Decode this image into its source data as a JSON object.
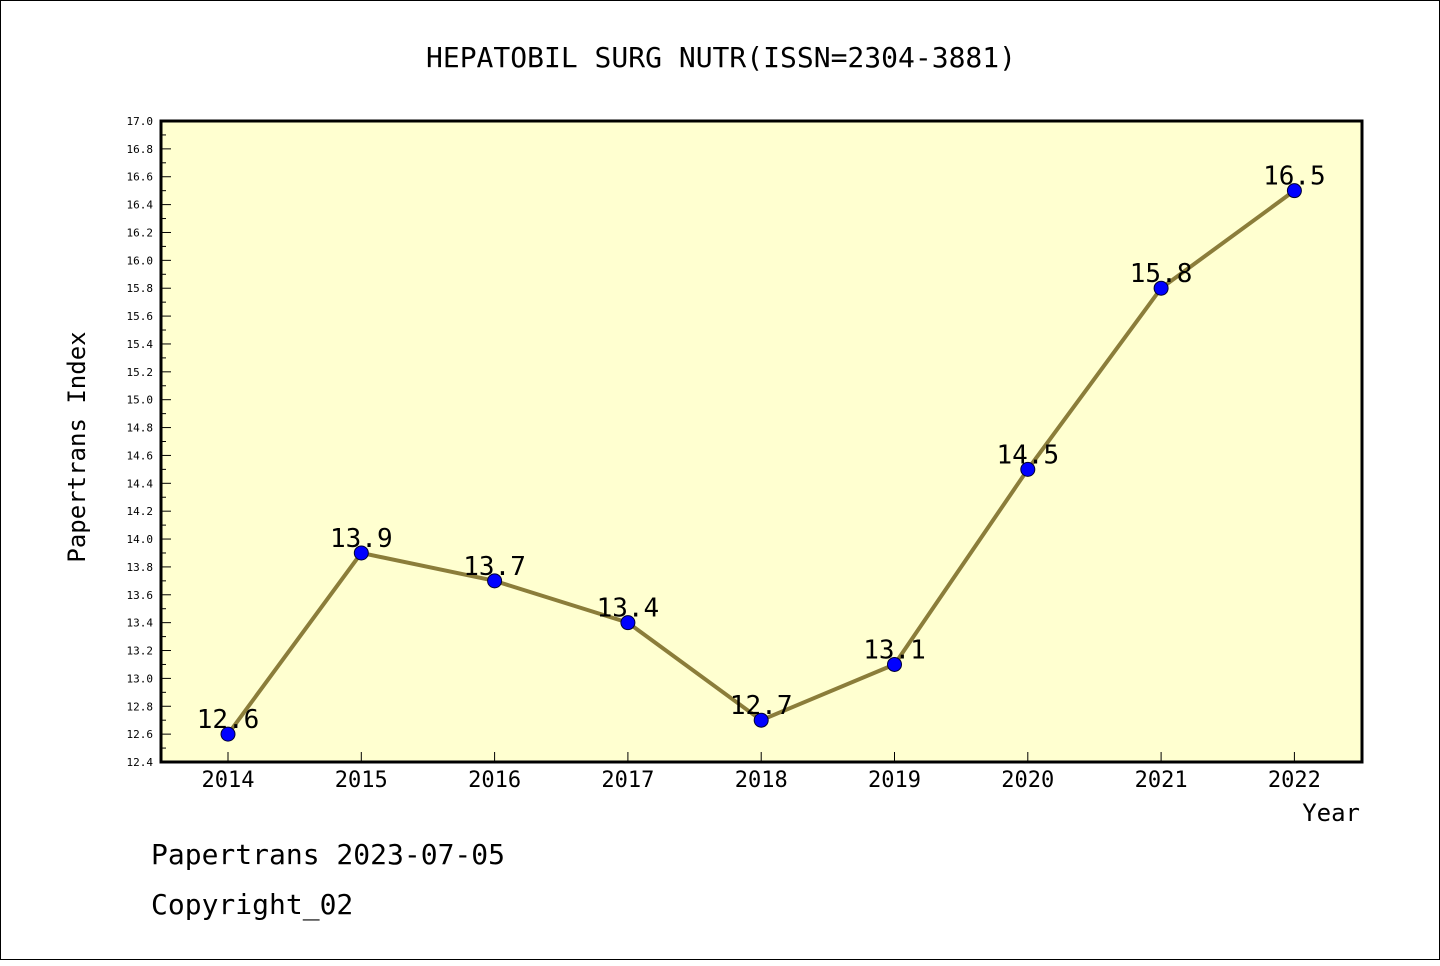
{
  "chart_data": {
    "type": "line",
    "title": "HEPATOBIL SURG NUTR(ISSN=2304-3881)",
    "xlabel": "Year",
    "ylabel": "Papertrans Index",
    "categories": [
      "2014",
      "2015",
      "2016",
      "2017",
      "2018",
      "2019",
      "2020",
      "2021",
      "2022"
    ],
    "values": [
      12.6,
      13.9,
      13.7,
      13.4,
      12.7,
      13.1,
      14.5,
      15.8,
      16.5
    ],
    "data_labels": [
      "12.6",
      "13.9",
      "13.7",
      "13.4",
      "12.7",
      "13.1",
      "14.5",
      "15.8",
      "16.5"
    ],
    "ylim": [
      12.4,
      17.0
    ],
    "yticks": [
      "12.4",
      "12.6",
      "12.8",
      "13.0",
      "13.2",
      "13.4",
      "13.6",
      "13.8",
      "14.0",
      "14.2",
      "14.4",
      "14.6",
      "14.8",
      "15.0",
      "15.2",
      "15.4",
      "15.6",
      "15.8",
      "16.0",
      "16.2",
      "16.4",
      "16.6",
      "16.8",
      "17.0"
    ],
    "grid": false,
    "colors": {
      "plot_background": "#ffffd0",
      "line": "#8b7d3a",
      "marker": "#0000ff"
    }
  },
  "footer": {
    "line1": "Papertrans 2023-07-05",
    "line2": "Copyright_02"
  }
}
